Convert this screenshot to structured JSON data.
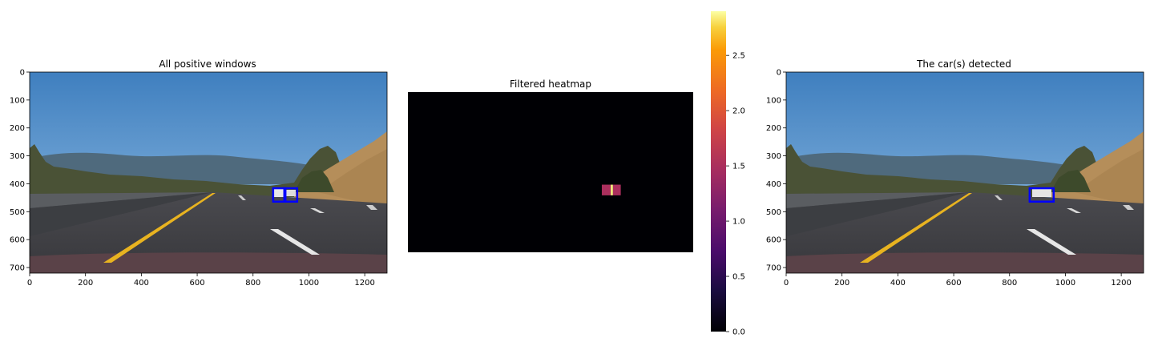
{
  "chart_data": [
    {
      "type": "image",
      "title": "All positive windows",
      "xlim": [
        0,
        1280
      ],
      "ylim": [
        720,
        0
      ],
      "xticks": [
        0,
        200,
        400,
        600,
        800,
        1000,
        1200
      ],
      "yticks": [
        0,
        100,
        200,
        300,
        400,
        500,
        600,
        700
      ],
      "boxes": [
        {
          "x0": 872,
          "y0": 416,
          "x1": 916,
          "y1": 464
        },
        {
          "x0": 912,
          "y0": 416,
          "x1": 958,
          "y1": 464
        }
      ],
      "box_color": "#0000ff"
    },
    {
      "type": "heatmap",
      "title": "Filtered heatmap",
      "extent": [
        0,
        1280,
        720,
        0
      ],
      "background_value": 0,
      "cells": [
        {
          "x0": 870,
          "x1": 910,
          "y0": 416,
          "y1": 464,
          "value": 1.5
        },
        {
          "x0": 910,
          "x1": 920,
          "y0": 416,
          "y1": 464,
          "value": 2.85
        },
        {
          "x0": 920,
          "x1": 955,
          "y0": 416,
          "y1": 464,
          "value": 1.5
        }
      ],
      "colorbar": {
        "min": 0,
        "max": 2.9,
        "ticks": [
          "0.0",
          "0.5",
          "1.0",
          "1.5",
          "2.0",
          "2.5"
        ],
        "colormap": "inferno"
      }
    },
    {
      "type": "image",
      "title": "The car(s) detected",
      "xlim": [
        0,
        1280
      ],
      "ylim": [
        720,
        0
      ],
      "xticks": [
        0,
        200,
        400,
        600,
        800,
        1000,
        1200
      ],
      "yticks": [
        0,
        100,
        200,
        300,
        400,
        500,
        600,
        700
      ],
      "boxes": [
        {
          "x0": 872,
          "y0": 416,
          "x1": 958,
          "y1": 464
        }
      ],
      "box_color": "#0000ff"
    }
  ]
}
